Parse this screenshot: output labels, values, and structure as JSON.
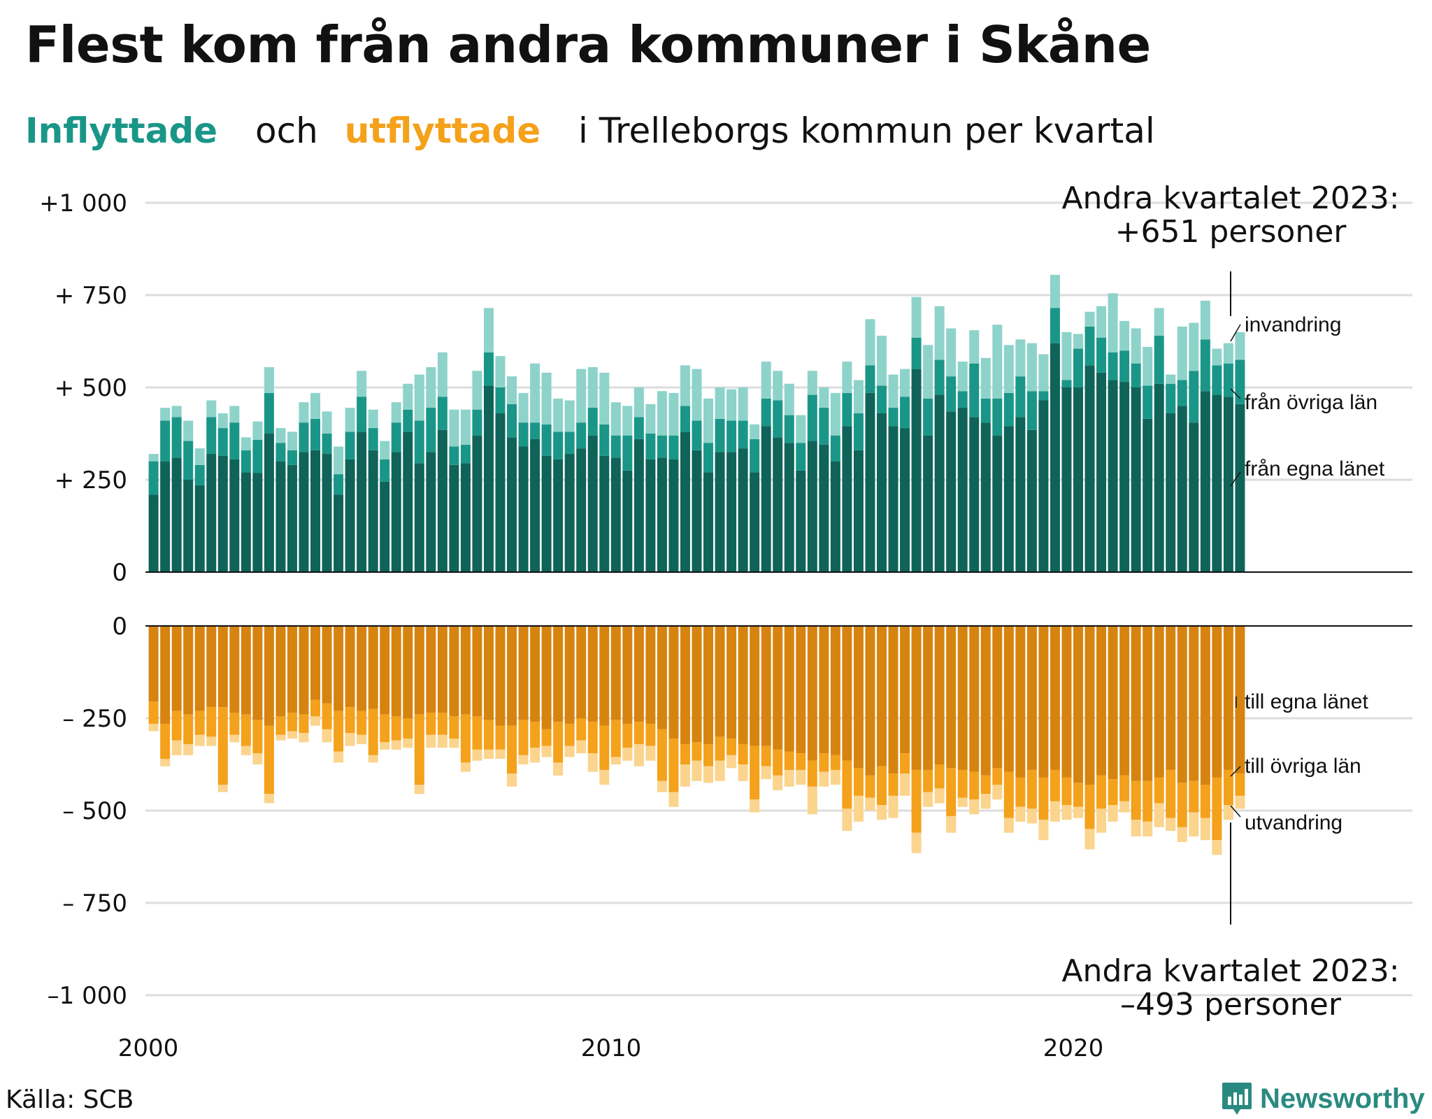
{
  "title": "Flest kom från andra kommuner i Skåne",
  "subtitle": {
    "in_word": "Inflyttade",
    "and_word": "och",
    "out_word": "utflyttade",
    "rest": "i Trelleborgs kommun per kvartal"
  },
  "source": "Källa: SCB",
  "brand": "Newsworthy",
  "colors": {
    "in_egna": "#0f6358",
    "in_ovriga": "#1a9688",
    "in_invandring": "#8dd3ca",
    "out_egna": "#d6840f",
    "out_ovriga": "#f4a11b",
    "out_utvandring": "#fbd48e"
  },
  "chart_data": {
    "type": "bar",
    "stacked": true,
    "title": "",
    "xlabel": "",
    "ylabel": "",
    "x_start": "2000 Q1",
    "x_end": "2023 Q2",
    "x_ticks": [
      "2000",
      "2010",
      "2020"
    ],
    "top_panel": {
      "ylim": [
        0,
        1000
      ],
      "y_ticks": [
        "+1 000",
        "+  750",
        "+  500",
        "+  250",
        "0"
      ],
      "series": [
        {
          "name": "från egna länet",
          "values": [
            210,
            300,
            310,
            250,
            235,
            320,
            315,
            305,
            270,
            268,
            375,
            300,
            290,
            325,
            330,
            320,
            210,
            305,
            380,
            330,
            245,
            325,
            380,
            295,
            325,
            385,
            290,
            295,
            370,
            505,
            430,
            365,
            340,
            360,
            315,
            305,
            320,
            335,
            370,
            315,
            310,
            275,
            360,
            305,
            310,
            305,
            380,
            330,
            270,
            325,
            325,
            335,
            270,
            395,
            365,
            350,
            275,
            355,
            345,
            300,
            395,
            330,
            485,
            430,
            395,
            390,
            550,
            370,
            480,
            435,
            445,
            420,
            405,
            370,
            395,
            420,
            385,
            465,
            620,
            500,
            500,
            560,
            540,
            520,
            515,
            500,
            415,
            510,
            430,
            450,
            405,
            490,
            480,
            475,
            455
          ]
        },
        {
          "name": "från övriga län",
          "values": [
            90,
            110,
            110,
            105,
            55,
            100,
            75,
            100,
            60,
            90,
            110,
            50,
            40,
            80,
            85,
            55,
            55,
            75,
            95,
            60,
            60,
            80,
            60,
            115,
            120,
            90,
            50,
            50,
            70,
            90,
            70,
            90,
            65,
            45,
            85,
            75,
            60,
            70,
            75,
            85,
            60,
            95,
            60,
            70,
            60,
            65,
            70,
            80,
            80,
            90,
            85,
            75,
            90,
            75,
            100,
            75,
            75,
            125,
            100,
            70,
            90,
            100,
            75,
            75,
            50,
            85,
            85,
            100,
            95,
            95,
            45,
            145,
            65,
            100,
            90,
            110,
            105,
            25,
            95,
            20,
            105,
            105,
            95,
            75,
            85,
            65,
            90,
            130,
            80,
            70,
            140,
            140,
            80,
            90,
            120
          ]
        },
        {
          "name": "invandring",
          "values": [
            20,
            35,
            30,
            55,
            45,
            45,
            40,
            45,
            35,
            50,
            70,
            40,
            50,
            55,
            70,
            60,
            75,
            65,
            70,
            50,
            50,
            55,
            70,
            125,
            110,
            120,
            100,
            95,
            105,
            120,
            85,
            75,
            80,
            160,
            140,
            90,
            85,
            145,
            110,
            140,
            90,
            80,
            80,
            80,
            120,
            115,
            110,
            140,
            120,
            85,
            85,
            90,
            40,
            100,
            80,
            85,
            75,
            65,
            55,
            115,
            85,
            90,
            125,
            135,
            90,
            75,
            110,
            145,
            145,
            130,
            80,
            90,
            110,
            200,
            130,
            100,
            130,
            100,
            90,
            130,
            40,
            40,
            85,
            160,
            80,
            95,
            105,
            75,
            25,
            145,
            130,
            105,
            45,
            55,
            75
          ]
        }
      ]
    },
    "bottom_panel": {
      "ylim": [
        -1000,
        0
      ],
      "y_ticks": [
        "0",
        "–  250",
        "–  500",
        "–  750",
        "–1 000"
      ],
      "series": [
        {
          "name": "till egna länet",
          "values": [
            -205,
            -265,
            -230,
            -240,
            -230,
            -220,
            -220,
            -235,
            -240,
            -255,
            -270,
            -245,
            -235,
            -240,
            -200,
            -210,
            -230,
            -220,
            -230,
            -225,
            -240,
            -245,
            -250,
            -240,
            -235,
            -235,
            -245,
            -240,
            -245,
            -255,
            -270,
            -270,
            -255,
            -260,
            -280,
            -260,
            -265,
            -250,
            -260,
            -270,
            -255,
            -265,
            -260,
            -265,
            -280,
            -305,
            -320,
            -315,
            -320,
            -300,
            -305,
            -320,
            -325,
            -325,
            -335,
            -340,
            -345,
            -365,
            -345,
            -350,
            -365,
            -385,
            -405,
            -380,
            -400,
            -345,
            -390,
            -390,
            -375,
            -385,
            -390,
            -395,
            -405,
            -385,
            -395,
            -410,
            -390,
            -410,
            -390,
            -410,
            -425,
            -430,
            -405,
            -415,
            -405,
            -420,
            -420,
            -410,
            -390,
            -425,
            -420,
            -430,
            -410,
            -390,
            -400
          ]
        },
        {
          "name": "till övriga län",
          "values": [
            -60,
            -95,
            -80,
            -80,
            -65,
            -80,
            -210,
            -60,
            -85,
            -90,
            -185,
            -50,
            -50,
            -50,
            -45,
            -70,
            -110,
            -70,
            -65,
            -125,
            -75,
            -65,
            -55,
            -190,
            -60,
            -60,
            -60,
            -130,
            -90,
            -80,
            -65,
            -130,
            -95,
            -70,
            -45,
            -110,
            -60,
            -60,
            -85,
            -120,
            -100,
            -65,
            -60,
            -60,
            -140,
            -145,
            -55,
            -50,
            -60,
            -65,
            -45,
            -55,
            -145,
            -55,
            -70,
            -50,
            -45,
            -70,
            -50,
            -40,
            -130,
            -75,
            -60,
            -105,
            -60,
            -55,
            -170,
            -60,
            -65,
            -130,
            -75,
            -75,
            -50,
            -45,
            -125,
            -80,
            -105,
            -115,
            -85,
            -75,
            -65,
            -120,
            -90,
            -70,
            -70,
            -105,
            -110,
            -70,
            -130,
            -120,
            -85,
            -90,
            -170,
            -95,
            -60
          ]
        },
        {
          "name": "utvandring",
          "values": [
            -20,
            -20,
            -40,
            -30,
            -30,
            -25,
            -20,
            -20,
            -25,
            -30,
            -25,
            -15,
            -20,
            -25,
            -25,
            -35,
            -30,
            -35,
            -25,
            -20,
            -20,
            -25,
            -25,
            -25,
            -35,
            -35,
            -25,
            -25,
            -30,
            -25,
            -25,
            -35,
            -25,
            -40,
            -30,
            -35,
            -30,
            -35,
            -50,
            -40,
            -20,
            -35,
            -60,
            -40,
            -30,
            -40,
            -60,
            -55,
            -45,
            -55,
            -35,
            -45,
            -35,
            -35,
            -40,
            -45,
            -40,
            -75,
            -40,
            -40,
            -60,
            -70,
            -35,
            -40,
            -60,
            -60,
            -55,
            -40,
            -40,
            -45,
            -25,
            -40,
            -40,
            -40,
            -40,
            -40,
            -40,
            -55,
            -55,
            -40,
            -30,
            -55,
            -65,
            -45,
            -30,
            -45,
            -40,
            -65,
            -35,
            -40,
            -65,
            -60,
            -40,
            -40,
            -35
          ]
        }
      ]
    },
    "series_labels": {
      "top": [
        "invandring",
        "från övriga län",
        "från egna länet"
      ],
      "bottom": [
        "till egna länet",
        "till övriga län",
        "utvandring"
      ]
    },
    "annotations": {
      "top_line1": "Andra kvartalet 2023:",
      "top_line2": "+651 personer",
      "bottom_line1": "Andra kvartalet 2023:",
      "bottom_line2": "–493 personer"
    }
  }
}
